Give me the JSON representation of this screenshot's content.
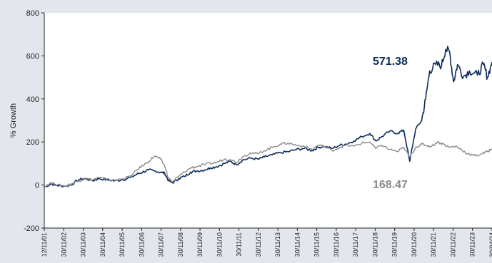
{
  "chart_data": {
    "type": "line",
    "xlabel": "",
    "ylabel": "% Growth",
    "ylim": [
      -200,
      800
    ],
    "yticks": [
      -200,
      0,
      200,
      400,
      600,
      800
    ],
    "xticks": [
      "12/11/01",
      "30/11/02",
      "30/11/03",
      "30/11/04",
      "30/11/05",
      "30/11/06",
      "30/11/07",
      "30/11/08",
      "30/11/09",
      "30/11/10",
      "30/11/11",
      "30/11/12",
      "30/11/13",
      "30/11/14",
      "30/11/15",
      "30/11/16",
      "30/11/17",
      "30/11/18",
      "30/11/19",
      "30/11/20",
      "30/11/21",
      "30/11/22",
      "30/11/23",
      "30/04/24"
    ],
    "grid": false,
    "legend": "none",
    "series": [
      {
        "color": "#0d2b5b",
        "end_label": "571.38",
        "points": [
          [
            2001.86,
            -10
          ],
          [
            2002.2,
            5
          ],
          [
            2002.5,
            -2
          ],
          [
            2002.9,
            -5
          ],
          [
            2003.2,
            0
          ],
          [
            2003.6,
            25
          ],
          [
            2003.9,
            30
          ],
          [
            2004.3,
            20
          ],
          [
            2004.6,
            30
          ],
          [
            2005.0,
            25
          ],
          [
            2005.4,
            20
          ],
          [
            2005.8,
            25
          ],
          [
            2006.2,
            35
          ],
          [
            2006.5,
            50
          ],
          [
            2006.8,
            60
          ],
          [
            2007.1,
            70
          ],
          [
            2007.4,
            65
          ],
          [
            2007.7,
            60
          ],
          [
            2007.9,
            55
          ],
          [
            2008.1,
            20
          ],
          [
            2008.3,
            10
          ],
          [
            2008.6,
            30
          ],
          [
            2008.9,
            40
          ],
          [
            2009.2,
            60
          ],
          [
            2009.5,
            65
          ],
          [
            2009.9,
            70
          ],
          [
            2010.2,
            80
          ],
          [
            2010.5,
            85
          ],
          [
            2010.9,
            100
          ],
          [
            2011.2,
            110
          ],
          [
            2011.5,
            95
          ],
          [
            2011.8,
            115
          ],
          [
            2012.2,
            125
          ],
          [
            2012.6,
            120
          ],
          [
            2012.9,
            130
          ],
          [
            2013.3,
            140
          ],
          [
            2013.7,
            150
          ],
          [
            2014.1,
            155
          ],
          [
            2014.5,
            165
          ],
          [
            2014.9,
            170
          ],
          [
            2015.3,
            160
          ],
          [
            2015.6,
            175
          ],
          [
            2015.9,
            180
          ],
          [
            2016.3,
            170
          ],
          [
            2016.7,
            185
          ],
          [
            2017.0,
            190
          ],
          [
            2017.4,
            205
          ],
          [
            2017.8,
            225
          ],
          [
            2018.2,
            240
          ],
          [
            2018.5,
            205
          ],
          [
            2018.8,
            225
          ],
          [
            2019.2,
            250
          ],
          [
            2019.6,
            240
          ],
          [
            2019.9,
            255
          ],
          [
            2020.2,
            110
          ],
          [
            2020.5,
            260
          ],
          [
            2020.8,
            300
          ],
          [
            2021.0,
            400
          ],
          [
            2021.2,
            530
          ],
          [
            2021.5,
            560
          ],
          [
            2021.8,
            555
          ],
          [
            2022.0,
            630
          ],
          [
            2022.2,
            620
          ],
          [
            2022.4,
            480
          ],
          [
            2022.6,
            560
          ],
          [
            2022.9,
            505
          ],
          [
            2023.2,
            530
          ],
          [
            2023.6,
            510
          ],
          [
            2023.9,
            560
          ],
          [
            2024.1,
            500
          ],
          [
            2024.33,
            571.38
          ]
        ]
      },
      {
        "color": "#8c8c8c",
        "end_label": "168.47",
        "points": [
          [
            2001.86,
            -5
          ],
          [
            2002.2,
            10
          ],
          [
            2002.5,
            0
          ],
          [
            2002.9,
            -5
          ],
          [
            2003.2,
            5
          ],
          [
            2003.6,
            20
          ],
          [
            2003.9,
            30
          ],
          [
            2004.3,
            25
          ],
          [
            2004.6,
            35
          ],
          [
            2005.0,
            25
          ],
          [
            2005.4,
            22
          ],
          [
            2005.8,
            30
          ],
          [
            2006.2,
            40
          ],
          [
            2006.5,
            70
          ],
          [
            2006.8,
            90
          ],
          [
            2007.1,
            110
          ],
          [
            2007.4,
            135
          ],
          [
            2007.7,
            120
          ],
          [
            2007.9,
            90
          ],
          [
            2008.1,
            30
          ],
          [
            2008.3,
            15
          ],
          [
            2008.6,
            40
          ],
          [
            2008.9,
            60
          ],
          [
            2009.2,
            80
          ],
          [
            2009.5,
            85
          ],
          [
            2009.9,
            95
          ],
          [
            2010.2,
            100
          ],
          [
            2010.5,
            105
          ],
          [
            2010.9,
            120
          ],
          [
            2011.2,
            120
          ],
          [
            2011.5,
            105
          ],
          [
            2011.8,
            130
          ],
          [
            2012.2,
            150
          ],
          [
            2012.6,
            145
          ],
          [
            2012.9,
            160
          ],
          [
            2013.3,
            175
          ],
          [
            2013.7,
            190
          ],
          [
            2014.1,
            195
          ],
          [
            2014.5,
            185
          ],
          [
            2014.9,
            180
          ],
          [
            2015.3,
            165
          ],
          [
            2015.6,
            185
          ],
          [
            2015.9,
            180
          ],
          [
            2016.3,
            160
          ],
          [
            2016.7,
            175
          ],
          [
            2017.0,
            185
          ],
          [
            2017.4,
            180
          ],
          [
            2017.8,
            195
          ],
          [
            2018.2,
            200
          ],
          [
            2018.5,
            170
          ],
          [
            2018.8,
            185
          ],
          [
            2019.2,
            165
          ],
          [
            2019.6,
            155
          ],
          [
            2019.9,
            175
          ],
          [
            2020.2,
            130
          ],
          [
            2020.5,
            175
          ],
          [
            2020.8,
            190
          ],
          [
            2021.0,
            185
          ],
          [
            2021.3,
            180
          ],
          [
            2021.6,
            200
          ],
          [
            2021.9,
            190
          ],
          [
            2022.2,
            175
          ],
          [
            2022.5,
            180
          ],
          [
            2022.8,
            165
          ],
          [
            2023.1,
            145
          ],
          [
            2023.5,
            135
          ],
          [
            2023.8,
            145
          ],
          [
            2024.1,
            155
          ],
          [
            2024.33,
            168.47
          ]
        ]
      }
    ]
  }
}
